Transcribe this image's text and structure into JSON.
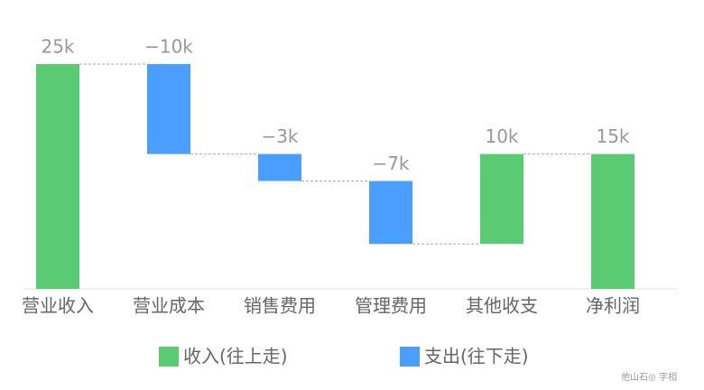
{
  "chart_data": {
    "type": "waterfall",
    "categories": [
      "营业收入",
      "营业成本",
      "销售费用",
      "管理费用",
      "其他收支",
      "净利润"
    ],
    "values": [
      25000,
      -10000,
      -3000,
      -7000,
      10000,
      15000
    ],
    "value_labels": [
      "25k",
      "−10k",
      "−3k",
      "−7k",
      "10k",
      "15k"
    ],
    "legend": [
      {
        "name": "收入(往上走)",
        "color": "#5acb73"
      },
      {
        "name": "支出(往下走)",
        "color": "#4a9ffe"
      }
    ],
    "watermark": "他山石◎ 字相"
  }
}
